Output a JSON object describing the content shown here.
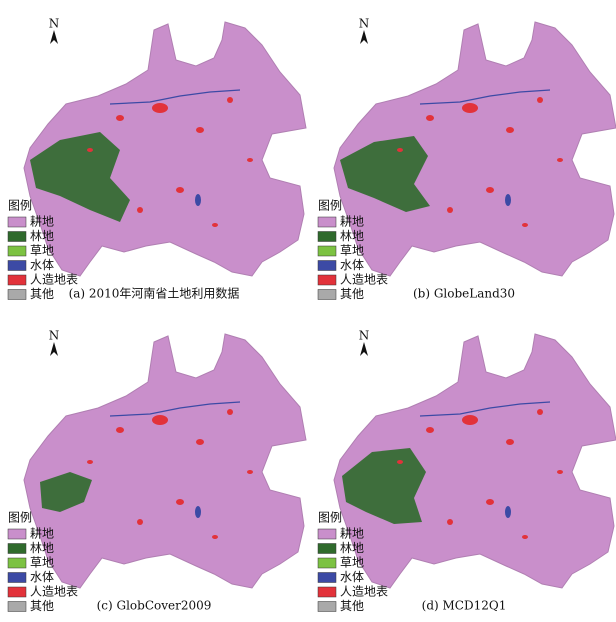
{
  "panels": [
    {
      "north": "N",
      "caption": "(a) 2010年河南省土地利用数据",
      "legend_title": "图例",
      "items": [
        {
          "label": "耕地",
          "color": "#c98fcb"
        },
        {
          "label": "林地",
          "color": "#2f6a2c"
        },
        {
          "label": "草地",
          "color": "#7cc242"
        },
        {
          "label": "水体",
          "color": "#3c4aa5"
        },
        {
          "label": "人造地表",
          "color": "#e2323a"
        },
        {
          "label": "其他",
          "color": "#a9a9a9"
        }
      ]
    },
    {
      "north": "N",
      "caption": "(b) GlobeLand30",
      "legend_title": "图例",
      "items": [
        {
          "label": "耕地",
          "color": "#c98fcb"
        },
        {
          "label": "林地",
          "color": "#2f6a2c"
        },
        {
          "label": "草地",
          "color": "#7cc242"
        },
        {
          "label": "水体",
          "color": "#3c4aa5"
        },
        {
          "label": "人造地表",
          "color": "#e2323a"
        },
        {
          "label": "其他",
          "color": "#a9a9a9"
        }
      ]
    },
    {
      "north": "N",
      "caption": "(c) GlobCover2009",
      "legend_title": "图例",
      "items": [
        {
          "label": "耕地",
          "color": "#c98fcb"
        },
        {
          "label": "林地",
          "color": "#2f6a2c"
        },
        {
          "label": "草地",
          "color": "#7cc242"
        },
        {
          "label": "水体",
          "color": "#3c4aa5"
        },
        {
          "label": "人造地表",
          "color": "#e2323a"
        },
        {
          "label": "其他",
          "color": "#a9a9a9"
        }
      ]
    },
    {
      "north": "N",
      "caption": "(d) MCD12Q1",
      "legend_title": "图例",
      "items": [
        {
          "label": "耕地",
          "color": "#c98fcb"
        },
        {
          "label": "林地",
          "color": "#2f6a2c"
        },
        {
          "label": "草地",
          "color": "#7cc242"
        },
        {
          "label": "水体",
          "color": "#3c4aa5"
        },
        {
          "label": "人造地表",
          "color": "#e2323a"
        },
        {
          "label": "其他",
          "color": "#a9a9a9"
        }
      ]
    }
  ]
}
